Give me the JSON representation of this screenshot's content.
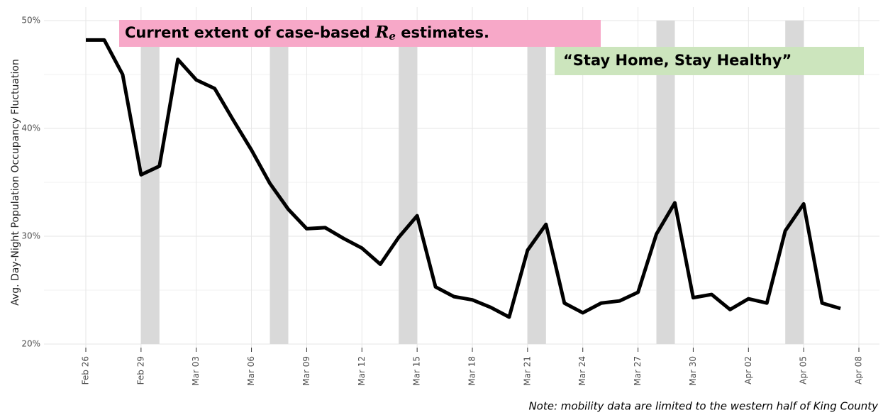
{
  "chart_data": {
    "type": "line",
    "y_label": "Avg. Day-Night Population Occupancy Fluctuation",
    "note": "Note: mobility data are limited to the western half of King County",
    "annotations": [
      {
        "text_before": "Current extent of case-based ",
        "symbol": "R",
        "subscript": "e",
        "text_after": " estimates.",
        "color": "#f7a8c8"
      },
      {
        "text": "“Stay Home, Stay Healthy”",
        "color": "#cce5bd"
      }
    ],
    "x": [
      "Feb 26",
      "Feb 27",
      "Feb 28",
      "Feb 29",
      "Mar 01",
      "Mar 02",
      "Mar 03",
      "Mar 04",
      "Mar 05",
      "Mar 06",
      "Mar 07",
      "Mar 08",
      "Mar 09",
      "Mar 10",
      "Mar 11",
      "Mar 12",
      "Mar 13",
      "Mar 14",
      "Mar 15",
      "Mar 16",
      "Mar 17",
      "Mar 18",
      "Mar 19",
      "Mar 20",
      "Mar 21",
      "Mar 22",
      "Mar 23",
      "Mar 24",
      "Mar 25",
      "Mar 26",
      "Mar 27",
      "Mar 28",
      "Mar 29",
      "Mar 30",
      "Mar 31",
      "Apr 01",
      "Apr 02",
      "Apr 03",
      "Apr 04",
      "Apr 05",
      "Apr 06",
      "Apr 07"
    ],
    "series": [
      {
        "name": "occupancy fluctuation",
        "color": "#000000",
        "values": [
          48.2,
          48.2,
          45.0,
          35.7,
          36.5,
          46.4,
          44.5,
          43.7,
          40.8,
          38.0,
          34.9,
          32.5,
          30.7,
          30.8,
          29.8,
          28.9,
          27.4,
          29.9,
          31.9,
          25.3,
          24.4,
          24.1,
          23.4,
          22.5,
          28.7,
          31.1,
          23.8,
          22.9,
          23.8,
          24.0,
          24.8,
          30.2,
          33.1,
          24.3,
          24.6,
          23.2,
          24.2,
          23.8,
          30.5,
          33.0,
          23.8,
          23.3
        ]
      }
    ],
    "shaded": [
      [
        "Feb 29",
        "Mar 01"
      ],
      [
        "Mar 07",
        "Mar 08"
      ],
      [
        "Mar 14",
        "Mar 15"
      ],
      [
        "Mar 21",
        "Mar 22"
      ],
      [
        "Mar 28",
        "Mar 29"
      ],
      [
        "Apr 04",
        "Apr 05"
      ]
    ],
    "shade_color": "#d9d9d9",
    "xlim": [
      "Feb 26",
      "Apr 08"
    ],
    "xticks": [
      "Feb 26",
      "Feb 29",
      "Mar 03",
      "Mar 06",
      "Mar 09",
      "Mar 12",
      "Mar 15",
      "Mar 18",
      "Mar 21",
      "Mar 24",
      "Mar 27",
      "Mar 30",
      "Apr 02",
      "Apr 05",
      "Apr 08"
    ],
    "ylim": [
      20,
      50
    ],
    "yticks": [
      {
        "value": 20,
        "label": "20%"
      },
      {
        "value": 30,
        "label": "30%"
      },
      {
        "value": 40,
        "label": "40%"
      },
      {
        "value": 50,
        "label": "50%"
      }
    ],
    "minor_yticks": [
      25,
      35,
      45
    ],
    "grid": true
  }
}
